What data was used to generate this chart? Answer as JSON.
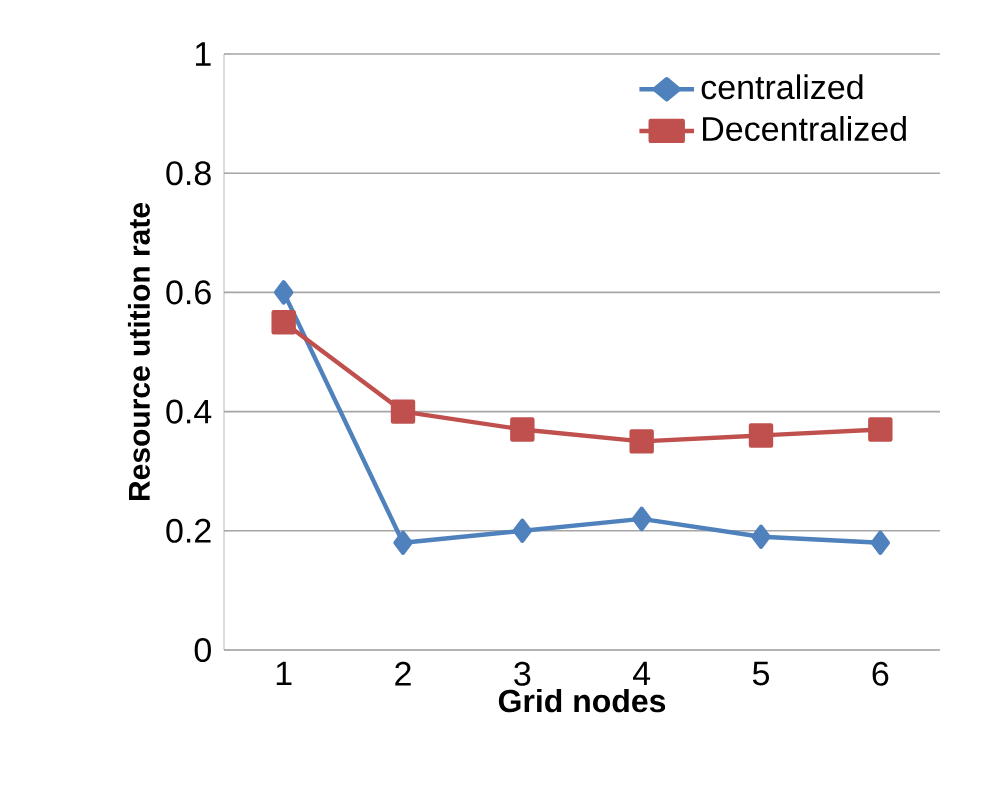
{
  "chart_data": {
    "type": "line",
    "xlabel": "Grid nodes",
    "ylabel": "Resource utition rate",
    "categories": [
      "1",
      "2",
      "3",
      "4",
      "5",
      "6"
    ],
    "series": [
      {
        "name": "centralized",
        "color": "#4f81bd",
        "marker": "diamond",
        "values": [
          0.6,
          0.18,
          0.2,
          0.22,
          0.19,
          0.18
        ]
      },
      {
        "name": "Decentralized",
        "color": "#c0504d",
        "marker": "square",
        "values": [
          0.55,
          0.4,
          0.37,
          0.35,
          0.36,
          0.37
        ]
      }
    ],
    "ylim": [
      0,
      1
    ],
    "yticks": [
      0,
      0.2,
      0.4,
      0.6,
      0.8,
      1
    ],
    "grid": "y",
    "legend": "top right"
  }
}
